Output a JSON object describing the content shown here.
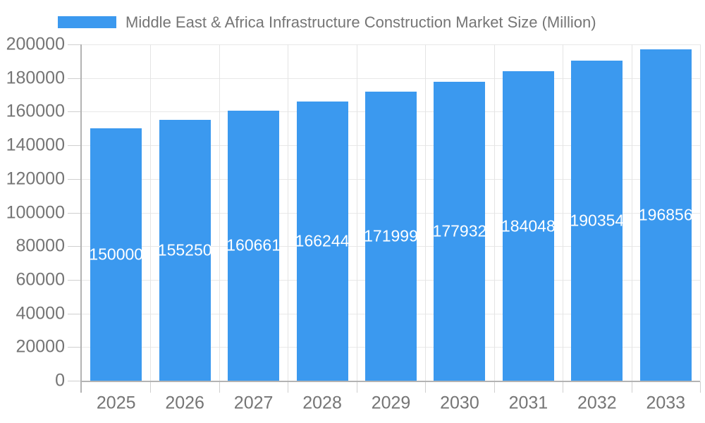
{
  "chart_data": {
    "type": "bar",
    "title": "Middle East & Africa Infrastructure Construction Market Size (Million)",
    "categories": [
      "2025",
      "2026",
      "2027",
      "2028",
      "2029",
      "2030",
      "2031",
      "2032",
      "2033"
    ],
    "values": [
      150000,
      155250,
      160661,
      166244,
      171999,
      177932,
      184048,
      190354,
      196856
    ],
    "xlabel": "",
    "ylabel": "",
    "ylim": [
      0,
      200000
    ],
    "ytick_step": 20000,
    "grid": true,
    "legend_position": "top-left",
    "value_labels": "inside-middle",
    "colors": {
      "bar": "#3b99ef",
      "bar_label": "#ffffff",
      "axis_text": "#757575",
      "gridline": "#e8e8e8",
      "axis_line": "#b3b3b3",
      "tick": "#cfcfcf"
    }
  }
}
